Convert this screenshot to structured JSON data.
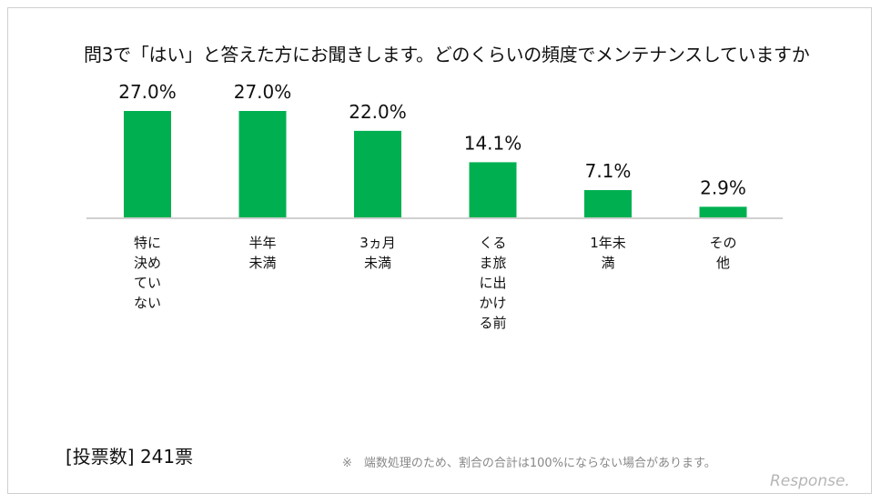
{
  "chart_data": {
    "type": "bar",
    "title": "問3で「はい」と答えた方にお聞きします。どのくらいの頻度でメンテナンスしていますか",
    "categories": [
      "特に決めていない",
      "半年未満",
      "3ヵ月未満",
      "くるま旅に出かける前",
      "1年未満",
      "その他"
    ],
    "values": [
      27.0,
      27.0,
      22.0,
      14.1,
      7.1,
      2.9
    ],
    "value_labels": [
      "27.0%",
      "27.0%",
      "22.0%",
      "14.1%",
      "7.1%",
      "2.9%"
    ],
    "ylim": [
      0,
      30
    ],
    "grid": false,
    "bar_color": "#00b050",
    "xlabel": "",
    "ylabel": ""
  },
  "votes_label": "[投票数] 241票",
  "footnote": "※　端数処理のため、割合の合計は100%にならない場合があります。",
  "logo": "Response."
}
